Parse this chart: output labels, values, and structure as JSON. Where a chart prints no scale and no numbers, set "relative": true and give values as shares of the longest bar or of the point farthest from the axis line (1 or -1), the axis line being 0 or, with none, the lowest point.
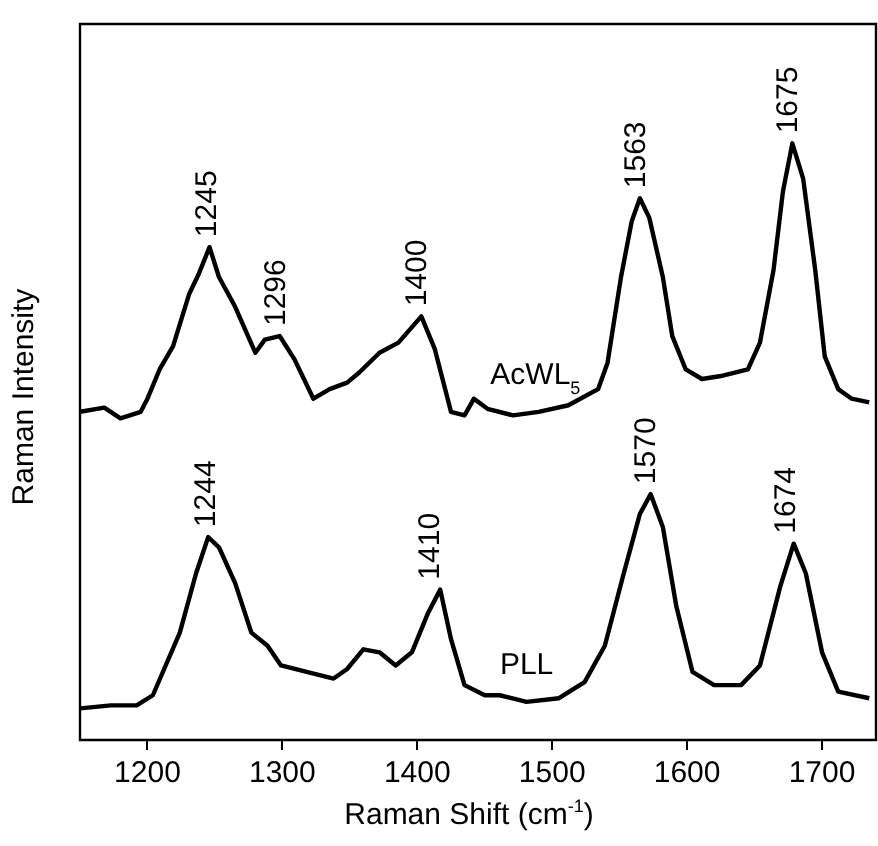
{
  "chart_data": {
    "type": "line",
    "xlabel": "Raman Shift (cm$^{-1}$)",
    "ylabel": "Raman Intensity",
    "relative": true,
    "xlim": [
      1150,
      1740
    ],
    "xticks": [
      1200,
      1300,
      1400,
      1500,
      1600,
      1700
    ],
    "grid": false,
    "legend": false,
    "marker": "none",
    "line_style": "solid",
    "series": [
      {
        "name": "AcWL$_{5}$",
        "color": "#000000",
        "x": [
          1150,
          1168,
          1180,
          1195,
          1200,
          1209,
          1219,
          1231,
          1238,
          1246,
          1253,
          1265,
          1280,
          1287,
          1298,
          1309,
          1323,
          1335,
          1348,
          1357,
          1372,
          1386,
          1403,
          1413,
          1425,
          1435,
          1442,
          1452,
          1471,
          1490,
          1512,
          1534,
          1541,
          1551,
          1559,
          1565,
          1572,
          1582,
          1589,
          1599,
          1611,
          1625,
          1645,
          1654,
          1664,
          1671,
          1678,
          1686,
          1695,
          1702,
          1712,
          1722,
          1735
        ],
        "values": [
          0.55,
          0.557,
          0.539,
          0.55,
          0.572,
          0.621,
          0.66,
          0.748,
          0.781,
          0.826,
          0.776,
          0.726,
          0.649,
          0.671,
          0.677,
          0.638,
          0.572,
          0.588,
          0.599,
          0.616,
          0.649,
          0.666,
          0.71,
          0.655,
          0.55,
          0.544,
          0.572,
          0.555,
          0.544,
          0.55,
          0.561,
          0.588,
          0.632,
          0.776,
          0.87,
          0.908,
          0.875,
          0.776,
          0.677,
          0.621,
          0.605,
          0.61,
          0.621,
          0.666,
          0.787,
          0.919,
          1.0,
          0.941,
          0.787,
          0.643,
          0.588,
          0.572,
          0.566
        ]
      },
      {
        "name": "PLL",
        "color": "#000000",
        "x": [
          1150,
          1173,
          1192,
          1204,
          1224,
          1236,
          1245,
          1253,
          1265,
          1277,
          1289,
          1299,
          1318,
          1338,
          1348,
          1360,
          1372,
          1384,
          1396,
          1408,
          1417,
          1425,
          1435,
          1450,
          1461,
          1481,
          1505,
          1524,
          1539,
          1553,
          1565,
          1573,
          1582,
          1592,
          1604,
          1620,
          1640,
          1654,
          1669,
          1679,
          1688,
          1700,
          1712,
          1735
        ],
        "values": [
          0.053,
          0.058,
          0.058,
          0.075,
          0.18,
          0.279,
          0.34,
          0.323,
          0.263,
          0.18,
          0.158,
          0.125,
          0.114,
          0.103,
          0.119,
          0.152,
          0.147,
          0.125,
          0.147,
          0.213,
          0.252,
          0.169,
          0.092,
          0.075,
          0.075,
          0.064,
          0.07,
          0.097,
          0.158,
          0.279,
          0.379,
          0.412,
          0.357,
          0.224,
          0.114,
          0.092,
          0.092,
          0.125,
          0.257,
          0.329,
          0.279,
          0.147,
          0.081,
          0.07
        ]
      }
    ],
    "annotations": [
      {
        "text": "1245",
        "x": 1245,
        "y": 0.826
      },
      {
        "text": "1296",
        "x": 1296,
        "y": 0.677
      },
      {
        "text": "1400",
        "x": 1400,
        "y": 0.71
      },
      {
        "text": "1563",
        "x": 1563,
        "y": 0.908
      },
      {
        "text": "1675",
        "x": 1675,
        "y": 1.0
      },
      {
        "text": "1244",
        "x": 1244,
        "y": 0.34
      },
      {
        "text": "1410",
        "x": 1410,
        "y": 0.252
      },
      {
        "text": "1570",
        "x": 1570,
        "y": 0.412
      },
      {
        "text": "1674",
        "x": 1674,
        "y": 0.329
      }
    ]
  }
}
